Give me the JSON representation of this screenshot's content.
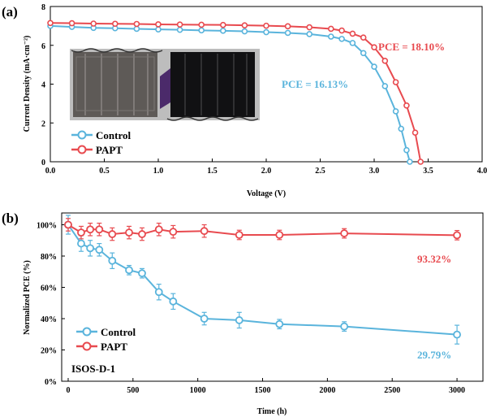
{
  "colors": {
    "control": "#5ab4dc",
    "papt": "#e84a4f",
    "axis": "#000000"
  },
  "chart_data": [
    {
      "panel": "(a)",
      "type": "line",
      "xlabel": "Voltage (V)",
      "ylabel": "Current Density (mA·cm⁻²)",
      "xlim": [
        0,
        4
      ],
      "ylim": [
        0,
        8
      ],
      "xticks": [
        "0.0",
        "0.5",
        "1.0",
        "1.5",
        "2.0",
        "2.5",
        "3.0",
        "3.5",
        "4.0"
      ],
      "yticks": [
        "0",
        "2",
        "4",
        "6",
        "8"
      ],
      "legend_position": "bottom-left",
      "series": [
        {
          "name": "Control",
          "color": "#5ab4dc",
          "annotation": "PCE = 16.13%",
          "x": [
            0.0,
            0.2,
            0.4,
            0.6,
            0.8,
            1.0,
            1.2,
            1.4,
            1.6,
            1.8,
            2.0,
            2.2,
            2.4,
            2.6,
            2.7,
            2.8,
            2.9,
            3.0,
            3.1,
            3.2,
            3.25,
            3.3,
            3.33
          ],
          "y": [
            7.0,
            6.95,
            6.9,
            6.88,
            6.85,
            6.82,
            6.8,
            6.77,
            6.75,
            6.72,
            6.68,
            6.64,
            6.58,
            6.45,
            6.33,
            6.12,
            5.6,
            4.9,
            3.9,
            2.6,
            1.7,
            0.6,
            0.0
          ]
        },
        {
          "name": "PAPT",
          "color": "#e84a4f",
          "annotation": "PCE = 18.10%",
          "x": [
            0.0,
            0.2,
            0.4,
            0.6,
            0.8,
            1.0,
            1.2,
            1.4,
            1.6,
            1.8,
            2.0,
            2.2,
            2.4,
            2.6,
            2.7,
            2.8,
            2.9,
            3.0,
            3.1,
            3.2,
            3.3,
            3.38,
            3.43
          ],
          "y": [
            7.15,
            7.14,
            7.12,
            7.11,
            7.1,
            7.08,
            7.07,
            7.06,
            7.05,
            7.03,
            7.01,
            6.98,
            6.93,
            6.85,
            6.76,
            6.6,
            6.4,
            5.9,
            5.2,
            4.1,
            2.9,
            1.5,
            0.0
          ]
        }
      ]
    },
    {
      "panel": "(b)",
      "type": "line",
      "xlabel": "Time (h)",
      "ylabel": "Normalized PCE (%)",
      "xlim": [
        -50,
        3200
      ],
      "ylim": [
        0,
        100
      ],
      "xticks": [
        "0",
        "500",
        "1000",
        "1500",
        "2000",
        "2500",
        "3000"
      ],
      "yticks": [
        "0%",
        "20%",
        "40%",
        "60%",
        "80%",
        "100%"
      ],
      "legend_position": "bottom-left",
      "annotation": "ISOS-D-1",
      "series": [
        {
          "name": "Control",
          "color": "#5ab4dc",
          "end_label": "29.79%",
          "x": [
            0,
            100,
            170,
            240,
            340,
            470,
            570,
            700,
            810,
            1050,
            1320,
            1630,
            2130,
            3000
          ],
          "y": [
            100,
            88,
            85,
            84,
            77,
            71,
            69,
            57,
            51,
            40,
            39,
            36.5,
            35,
            29.79
          ],
          "err": [
            6,
            5,
            5,
            4,
            5,
            3,
            3,
            5,
            5,
            4,
            5,
            3,
            3,
            6
          ]
        },
        {
          "name": "PAPT",
          "color": "#e84a4f",
          "end_label": "93.32%",
          "x": [
            0,
            100,
            170,
            240,
            340,
            470,
            570,
            700,
            810,
            1050,
            1320,
            1630,
            2130,
            3000
          ],
          "y": [
            100,
            95,
            97,
            97,
            94,
            95,
            94,
            97,
            95.5,
            96,
            93.5,
            93.5,
            94.5,
            93.32
          ],
          "err": [
            4,
            4,
            4,
            4,
            4,
            4,
            4,
            4,
            4,
            4,
            3,
            3,
            3,
            3
          ]
        }
      ]
    }
  ]
}
